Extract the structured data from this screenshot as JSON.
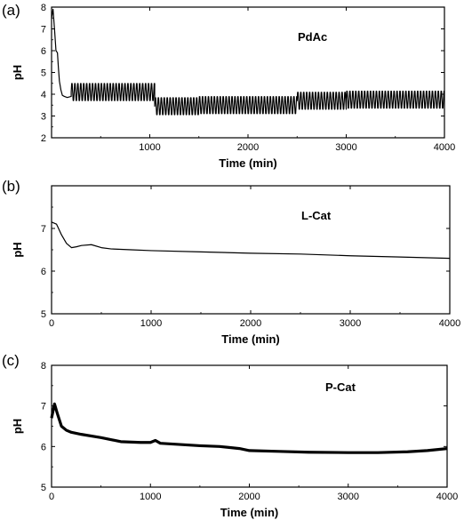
{
  "chart_data": [
    {
      "type": "line",
      "panel_label": "(a)",
      "annotation": "PdAc",
      "xlabel": "Time (min)",
      "ylabel": "pH",
      "xlim": [
        0,
        4000
      ],
      "ylim": [
        2,
        8
      ],
      "xticks": [
        "1000",
        "2000",
        "3000",
        "4000"
      ],
      "yticks": [
        "2",
        "3",
        "4",
        "5",
        "6",
        "7",
        "8"
      ],
      "oscillation": [
        {
          "t_start": 200,
          "t_end": 1050,
          "mid": 4.1,
          "amp": 0.45,
          "period": 30
        },
        {
          "t_start": 1050,
          "t_end": 1500,
          "mid": 3.45,
          "amp": 0.45,
          "period": 30
        },
        {
          "t_start": 1500,
          "t_end": 2500,
          "mid": 3.5,
          "amp": 0.45,
          "period": 30
        },
        {
          "t_start": 2500,
          "t_end": 3000,
          "mid": 3.7,
          "amp": 0.45,
          "period": 30
        },
        {
          "t_start": 3000,
          "t_end": 4000,
          "mid": 3.75,
          "amp": 0.45,
          "period": 30
        }
      ],
      "series": [
        {
          "x": [
            0,
            15,
            30,
            45,
            60,
            70,
            80,
            95,
            110,
            130,
            160,
            200
          ],
          "y": [
            7.5,
            7.9,
            7.0,
            6.0,
            5.9,
            5.2,
            4.6,
            4.2,
            3.95,
            3.9,
            3.85,
            3.9
          ]
        }
      ]
    },
    {
      "type": "line",
      "panel_label": "(b)",
      "annotation": "L-Cat",
      "xlabel": "Time (min)",
      "ylabel": "pH",
      "xlim": [
        0,
        4000
      ],
      "ylim": [
        5,
        8
      ],
      "xticks": [
        "0",
        "1000",
        "2000",
        "3000",
        "4000"
      ],
      "yticks": [
        "5",
        "6",
        "7"
      ],
      "series": [
        {
          "x": [
            0,
            50,
            100,
            150,
            200,
            250,
            300,
            400,
            500,
            600,
            800,
            1000,
            1500,
            2000,
            2500,
            3000,
            3500,
            4000
          ],
          "y": [
            7.15,
            7.1,
            6.85,
            6.65,
            6.55,
            6.57,
            6.6,
            6.62,
            6.55,
            6.52,
            6.5,
            6.48,
            6.45,
            6.42,
            6.4,
            6.36,
            6.33,
            6.3
          ]
        }
      ]
    },
    {
      "type": "line",
      "panel_label": "(c)",
      "annotation": "P-Cat",
      "xlabel": "Time (min)",
      "ylabel": "pH",
      "xlim": [
        0,
        4000
      ],
      "ylim": [
        5,
        8
      ],
      "xticks": [
        "0",
        "1000",
        "2000",
        "3000",
        "4000"
      ],
      "yticks": [
        "5",
        "6",
        "7",
        "8"
      ],
      "series": [
        {
          "x": [
            0,
            30,
            60,
            100,
            150,
            200,
            300,
            500,
            700,
            900,
            1000,
            1050,
            1100,
            1300,
            1500,
            1700,
            1900,
            2000,
            2300,
            2600,
            3000,
            3300,
            3600,
            3800,
            4000
          ],
          "y": [
            6.7,
            7.05,
            6.8,
            6.5,
            6.4,
            6.35,
            6.3,
            6.22,
            6.12,
            6.1,
            6.1,
            6.15,
            6.08,
            6.05,
            6.02,
            6.0,
            5.95,
            5.9,
            5.88,
            5.86,
            5.85,
            5.85,
            5.87,
            5.9,
            5.95
          ]
        }
      ]
    }
  ]
}
